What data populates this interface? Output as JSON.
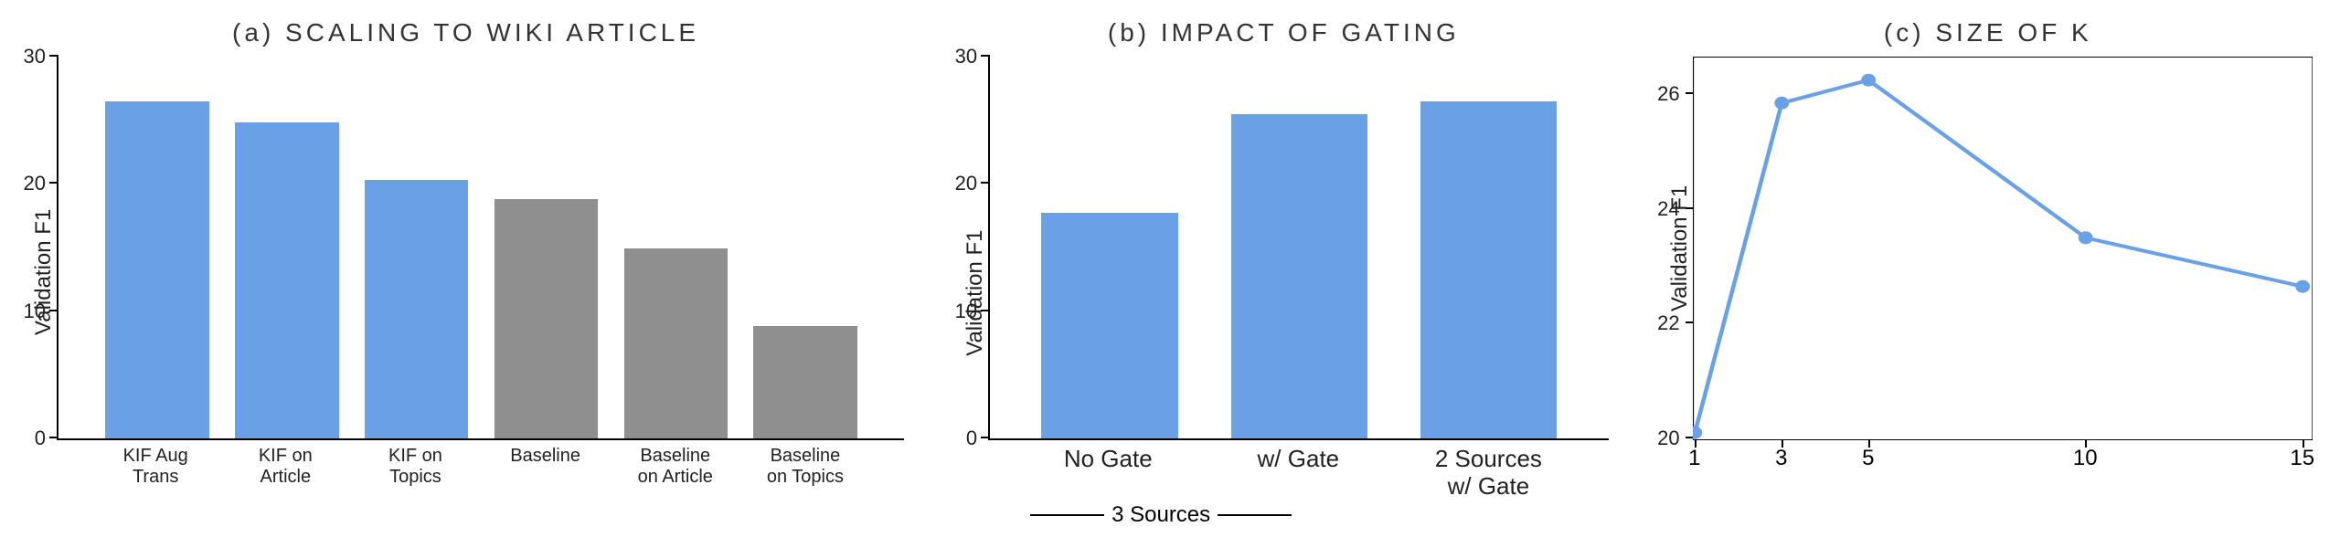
{
  "colors": {
    "blue": "#6aa1e6",
    "gray": "#8f8f8f",
    "axis": "#000000",
    "text": "#333333",
    "background": "#ffffff"
  },
  "panel_a": {
    "title": "(a)  SCALING TO WIKI ARTICLE",
    "ylabel": "Validation F1",
    "type": "bar",
    "ylim": [
      0,
      30
    ],
    "yticks": [
      0,
      10,
      20,
      30
    ],
    "bar_width_pct": 80,
    "bars": [
      {
        "label_l1": "KIF Aug",
        "label_l2": "Trans",
        "value": 26.5,
        "color": "#6aa1e6"
      },
      {
        "label_l1": "KIF on",
        "label_l2": "Article",
        "value": 24.8,
        "color": "#6aa1e6"
      },
      {
        "label_l1": "KIF on",
        "label_l2": "Topics",
        "value": 20.3,
        "color": "#6aa1e6"
      },
      {
        "label_l1": "Baseline",
        "label_l2": "",
        "value": 18.8,
        "color": "#8f8f8f"
      },
      {
        "label_l1": "Baseline",
        "label_l2": "on Article",
        "value": 14.9,
        "color": "#8f8f8f"
      },
      {
        "label_l1": "Baseline",
        "label_l2": "on Topics",
        "value": 8.8,
        "color": "#8f8f8f"
      }
    ]
  },
  "panel_b": {
    "title": "(b)  IMPACT OF GATING",
    "ylabel": "Validation F1",
    "type": "bar",
    "ylim": [
      0,
      30
    ],
    "yticks": [
      0,
      10,
      20,
      30
    ],
    "bar_width_pct": 72,
    "bars": [
      {
        "label_l1": "No Gate",
        "label_l2": "",
        "value": 17.7,
        "color": "#6aa1e6"
      },
      {
        "label_l1": "w/ Gate",
        "label_l2": "",
        "value": 25.5,
        "color": "#6aa1e6"
      },
      {
        "label_l1": "2 Sources",
        "label_l2": "w/ Gate",
        "value": 26.5,
        "color": "#6aa1e6"
      }
    ],
    "annotation": "3 Sources"
  },
  "panel_c": {
    "title": "(c)   SIZE OF K",
    "ylabel": "Validation F1",
    "type": "line",
    "ylim": [
      20,
      26.5
    ],
    "yticks": [
      20,
      22,
      24,
      26
    ],
    "xlim": [
      1,
      15
    ],
    "xticks": [
      1,
      3,
      5,
      10,
      15
    ],
    "line_color": "#6aa1e6",
    "line_width": 4,
    "marker": "circle",
    "marker_size": 7,
    "points": [
      {
        "x": 1,
        "y": 20.1
      },
      {
        "x": 3,
        "y": 25.85
      },
      {
        "x": 5,
        "y": 26.25
      },
      {
        "x": 10,
        "y": 23.5
      },
      {
        "x": 15,
        "y": 22.65
      }
    ]
  }
}
